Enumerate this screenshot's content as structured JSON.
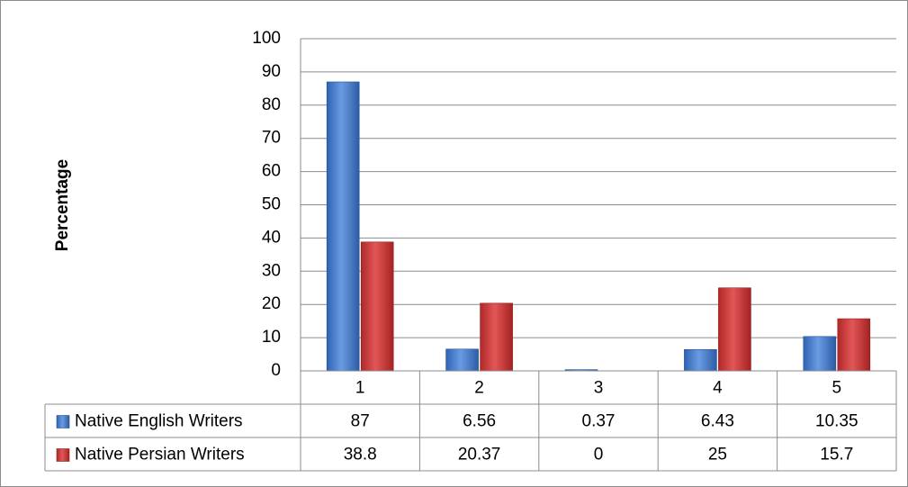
{
  "chart_data": {
    "type": "bar",
    "title": "",
    "xlabel": "",
    "ylabel": "Percentage",
    "categories": [
      "1",
      "2",
      "3",
      "4",
      "5"
    ],
    "ylim": [
      0,
      100
    ],
    "yticks": [
      "0",
      "10",
      "20",
      "30",
      "40",
      "50",
      "60",
      "70",
      "80",
      "90",
      "100"
    ],
    "grid": true,
    "legend": "data table",
    "series": [
      {
        "name": "Native English Writers",
        "values": [
          87,
          6.56,
          0.37,
          6.43,
          10.35
        ],
        "labels": [
          "87",
          "6.56",
          "0.37",
          "6.43",
          "10.35"
        ],
        "color": "#4a7fcf"
      },
      {
        "name": "Native Persian Writers",
        "values": [
          38.8,
          20.37,
          0,
          25,
          15.7
        ],
        "labels": [
          "38.8",
          "20.37",
          "0",
          "25",
          "15.7"
        ],
        "color": "#cc3838"
      }
    ]
  }
}
